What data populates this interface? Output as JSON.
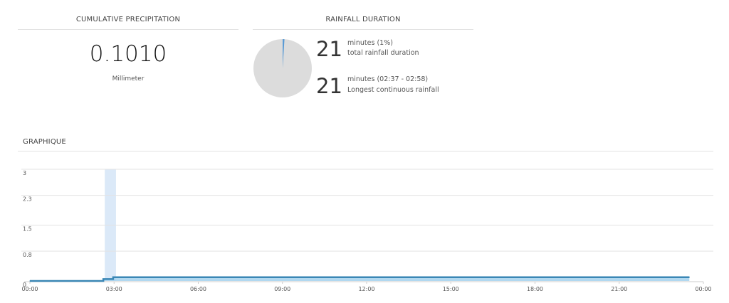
{
  "precipitation": {
    "title": "CUMULATIVE PRECIPITATION",
    "value": "0.1010",
    "unit": "Millimeter"
  },
  "duration": {
    "title": "RAINFALL DURATION",
    "pie_fraction": 0.01,
    "pie_colors": {
      "filled": "#5b9bd5",
      "remaining": "#dcdcdc"
    },
    "stats": [
      {
        "value": "21",
        "line1": "minutes (1%)",
        "line2": "total rainfall duration"
      },
      {
        "value": "21",
        "line1": "minutes (02:37 - 02:58)",
        "line2": "Longest continuous rainfall"
      }
    ]
  },
  "graph": {
    "title": "GRAPHIQUE"
  },
  "chart_data": {
    "type": "area",
    "title": "",
    "xlabel": "",
    "ylabel": "",
    "x_ticks": [
      "00:00",
      "03:00",
      "06:00",
      "09:00",
      "12:00",
      "15:00",
      "18:00",
      "21:00",
      "00:00"
    ],
    "y_ticks": [
      "0",
      "0.8",
      "1.5",
      "2.3",
      "3"
    ],
    "ylim": [
      0,
      3
    ],
    "xlim_hours": [
      0,
      24
    ],
    "highlight_band": {
      "start": "02:37",
      "end": "02:58"
    },
    "series": [
      {
        "x": [
          "00:00",
          "02:37",
          "02:37",
          "02:58",
          "02:58",
          "23:30"
        ],
        "values": [
          0,
          0,
          0.05,
          0.05,
          0.101,
          0.101
        ]
      }
    ],
    "colors": {
      "line": "#3a87b5",
      "fill": "#a8d4ee",
      "band": "#dbe9f8",
      "grid": "#e3e3e3"
    },
    "grid": true
  }
}
